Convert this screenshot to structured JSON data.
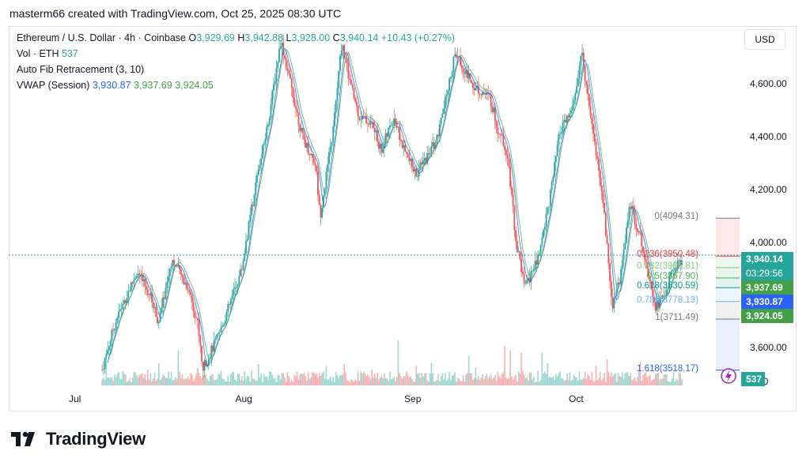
{
  "header": {
    "text": "masterm66 created with TradingView.com, Oct 25, 2025 08:30 UTC"
  },
  "legend": {
    "symbol": "Ethereum / U.S. Dollar · 4h · Coinbase",
    "o_label": "O",
    "o_value": "3,929.69",
    "h_label": "H",
    "h_value": "3,942.88",
    "l_label": "L",
    "l_value": "3,928.00",
    "c_label": "C",
    "c_value": "3,940.14",
    "change": "+10.43 (+0.27%)",
    "vol_label": "Vol · ETH",
    "vol_value": "537",
    "fib_label": "Auto Fib Retracement (3, 10)",
    "vwap_label": "VWAP (Session)",
    "vwap_values": [
      "3,930.87",
      "3,937.69",
      "3,924.05"
    ]
  },
  "currency_button": "USD",
  "colors": {
    "up": "#26a69a",
    "down": "#ef5350",
    "vwap": "#2962ff",
    "upper_band": "#4caf50",
    "fib_red": "#f23645",
    "fib_teal": "#089981",
    "fib_blue": "#2962ff"
  },
  "chart_data": {
    "type": "candlestick",
    "ylim": [
      3460,
      4820
    ],
    "y_ticks": [
      "4,600.00",
      "4,400.00",
      "4,200.00",
      "4,000.00",
      "3,600.00"
    ],
    "y_tick_values": [
      4600,
      4400,
      4200,
      4000,
      3600
    ],
    "x_ticks": [
      "Jul",
      "Aug",
      "Sep",
      "Oct"
    ],
    "x_tick_days": [
      7,
      38,
      69,
      99
    ],
    "x_range_days": [
      -5,
      129
    ],
    "price_path": [
      [
        15,
        3520
      ],
      [
        18,
        3700
      ],
      [
        23,
        3890
      ],
      [
        26,
        3800
      ],
      [
        28,
        3700
      ],
      [
        31,
        3940
      ],
      [
        35,
        3820
      ],
      [
        37,
        3690
      ],
      [
        38,
        3520
      ],
      [
        42,
        3660
      ],
      [
        47,
        3900
      ],
      [
        50,
        4200
      ],
      [
        53,
        4450
      ],
      [
        56,
        4770
      ],
      [
        58,
        4620
      ],
      [
        61,
        4400
      ],
      [
        64,
        4300
      ],
      [
        65,
        4100
      ],
      [
        68,
        4430
      ],
      [
        70,
        4760
      ],
      [
        72,
        4600
      ],
      [
        74,
        4480
      ],
      [
        77,
        4450
      ],
      [
        79,
        4350
      ],
      [
        82,
        4480
      ],
      [
        84,
        4360
      ],
      [
        87,
        4260
      ],
      [
        90,
        4340
      ],
      [
        92,
        4400
      ],
      [
        96,
        4720
      ],
      [
        100,
        4600
      ],
      [
        104,
        4550
      ],
      [
        106,
        4420
      ],
      [
        108,
        4340
      ],
      [
        110,
        4000
      ],
      [
        112,
        3830
      ],
      [
        115,
        3940
      ],
      [
        118,
        4200
      ],
      [
        120,
        4420
      ],
      [
        123,
        4510
      ],
      [
        125,
        4720
      ],
      [
        127,
        4500
      ],
      [
        130,
        4150
      ],
      [
        132,
        3760
      ],
      [
        134,
        3880
      ],
      [
        136,
        4150
      ],
      [
        138,
        4050
      ],
      [
        140,
        3920
      ],
      [
        142,
        3760
      ],
      [
        144,
        3800
      ],
      [
        146,
        3900
      ],
      [
        148,
        3940
      ]
    ],
    "fib_levels": [
      {
        "label": "0(4094.31)",
        "value": 4094.31
      },
      {
        "label": "0.236(3950.48)",
        "value": 3950.48
      },
      {
        "label": "0.382(3906.81)",
        "value": 3906.81
      },
      {
        "label": "0.5(3867.90)",
        "value": 3867.9
      },
      {
        "label": "0.618(3830.59)",
        "value": 3830.59
      },
      {
        "label": "0.786(3778.13)",
        "value": 3778.13
      },
      {
        "label": "1(3711.49)",
        "value": 3711.49
      },
      {
        "label": "1.618(3518.17)",
        "value": 3518.17
      }
    ],
    "price_badges": [
      {
        "label": "3,940.14",
        "sub": "03:29:56",
        "value": 3940.14,
        "color": "#26a69a"
      },
      {
        "label": "3,937.69",
        "value": 3937.69,
        "color": "#43a047"
      },
      {
        "label": "3,930.87",
        "value": 3930.87,
        "color": "#2962ff"
      },
      {
        "label": "3,924.05",
        "value": 3924.05,
        "color": "#43a047"
      }
    ],
    "volume_label": "537",
    "volume_axis_label": "0.00"
  },
  "logo": {
    "text": "TradingView"
  }
}
